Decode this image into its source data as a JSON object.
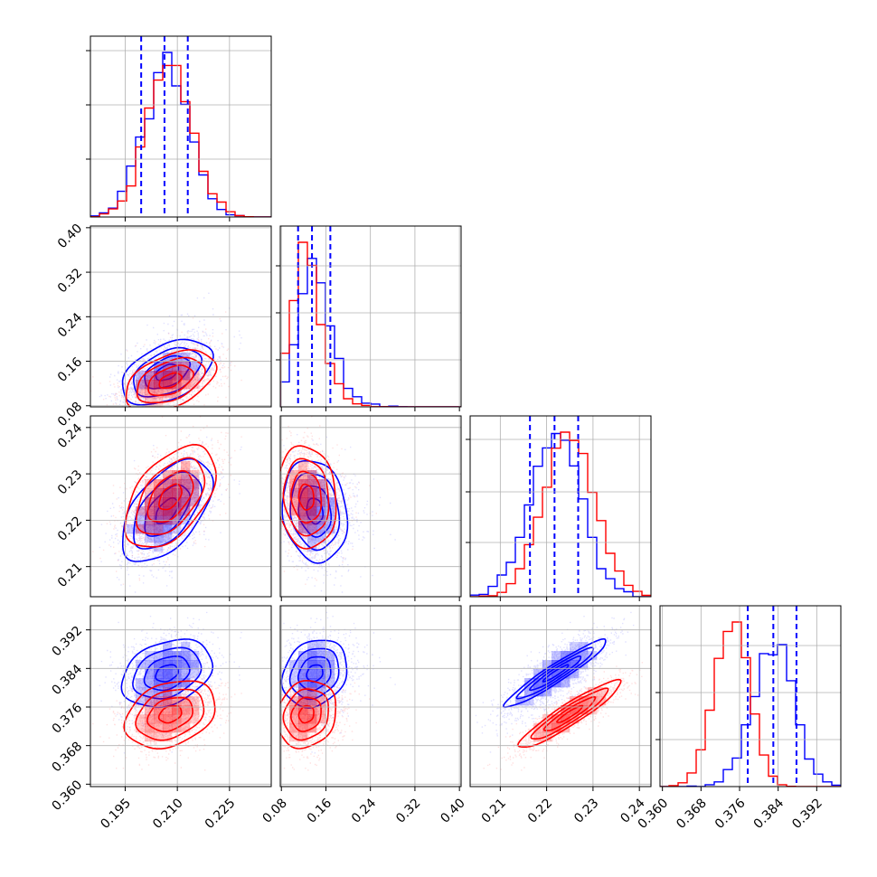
{
  "chart_data": {
    "type": "corner",
    "n_params": 4,
    "grid": true,
    "series": [
      {
        "color": "#0000ff",
        "means": [
          0.207,
          0.14,
          0.222,
          0.383
        ],
        "sigmas": [
          0.0065,
          0.027,
          0.0055,
          0.0035
        ]
      },
      {
        "color": "#ff0000",
        "means": [
          0.208,
          0.125,
          0.225,
          0.3745
        ],
        "sigmas": [
          0.0065,
          0.025,
          0.0055,
          0.0035
        ]
      }
    ],
    "quantiles": {
      "color": "#0000ff",
      "style": "dashed",
      "values": [
        [
          0.1996,
          0.2063,
          0.213
        ],
        [
          0.11,
          0.135,
          0.168
        ],
        [
          0.2164,
          0.2217,
          0.2268
        ],
        [
          0.3777,
          0.383,
          0.3878
        ]
      ]
    },
    "correlations": {
      "blue": {
        "0-1": 0.45,
        "0-2": 0.55,
        "0-3": 0.3,
        "1-2": -0.15,
        "1-3": 0.2,
        "2-3": 0.95
      },
      "red": {
        "0-1": 0.45,
        "0-2": 0.5,
        "0-3": 0.3,
        "1-2": -0.1,
        "1-3": 0.15,
        "2-3": 0.93
      }
    },
    "axes": [
      {
        "range": [
          0.185,
          0.237
        ],
        "ticks": [
          0.195,
          0.21,
          0.225
        ],
        "tick_labels": [
          "0.195",
          "0.210",
          "0.225"
        ]
      },
      {
        "range": [
          0.078,
          0.403
        ],
        "ticks": [
          0.08,
          0.16,
          0.24,
          0.32,
          0.4
        ],
        "tick_labels": [
          "0.08",
          "0.16",
          "0.24",
          "0.32",
          "0.40"
        ]
      },
      {
        "range": [
          0.2035,
          0.2425
        ],
        "ticks": [
          0.21,
          0.22,
          0.23,
          0.24
        ],
        "tick_labels": [
          "0.21",
          "0.22",
          "0.23",
          "0.24"
        ]
      },
      {
        "range": [
          0.3595,
          0.397
        ],
        "ticks": [
          0.36,
          0.368,
          0.376,
          0.384,
          0.392
        ],
        "tick_labels": [
          "0.360",
          "0.368",
          "0.376",
          "0.384",
          "0.392"
        ]
      }
    ],
    "hist_y_ticks": [
      [
        0.32,
        0.62,
        0.92
      ],
      [
        0.26,
        0.52,
        0.78
      ],
      [
        0.3,
        0.58,
        0.87
      ],
      [
        0.26,
        0.52,
        0.78
      ]
    ]
  }
}
